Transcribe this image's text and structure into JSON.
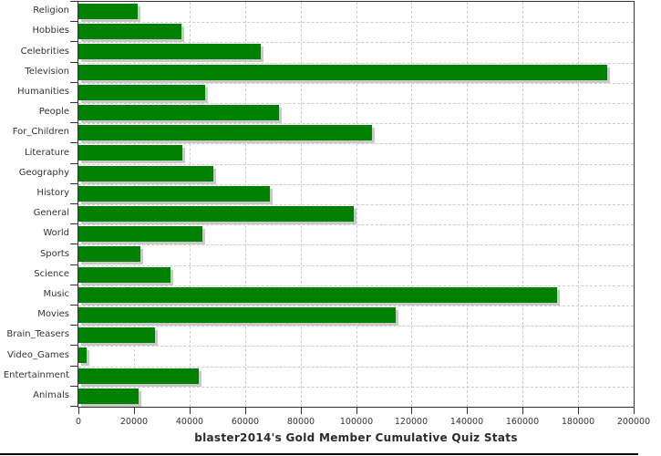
{
  "chart_data": {
    "type": "bar",
    "orientation": "horizontal",
    "title": "blaster2014's Gold Member Cumulative Quiz Stats",
    "categories": [
      "Religion",
      "Hobbies",
      "Celebrities",
      "Television",
      "Humanities",
      "People",
      "For_Children",
      "Literature",
      "Geography",
      "History",
      "General",
      "World",
      "Sports",
      "Science",
      "Music",
      "Movies",
      "Brain_Teasers",
      "Video_Games",
      "Entertainment",
      "Animals"
    ],
    "values": [
      21500,
      37200,
      65800,
      190500,
      45700,
      72300,
      105800,
      37300,
      48700,
      69000,
      99200,
      44800,
      22400,
      33300,
      172400,
      114300,
      27700,
      3000,
      43400,
      21600
    ],
    "xlabel": "",
    "ylabel": "",
    "xlim": [
      0,
      200000
    ],
    "x_tick_step": 20000,
    "x_tick_labels": [
      "0",
      "20000",
      "40000",
      "60000",
      "80000",
      "100000",
      "120000",
      "140000",
      "160000",
      "180000",
      "200000"
    ],
    "grid": "dashed",
    "legend": "none",
    "colors": {
      "bar": "#008000",
      "bar_shadow": "#c9c9c9",
      "grid": "#cccccc",
      "axis": "#333333",
      "text": "#333333",
      "background": "#ffffff",
      "bottom_line": "#000000"
    }
  }
}
